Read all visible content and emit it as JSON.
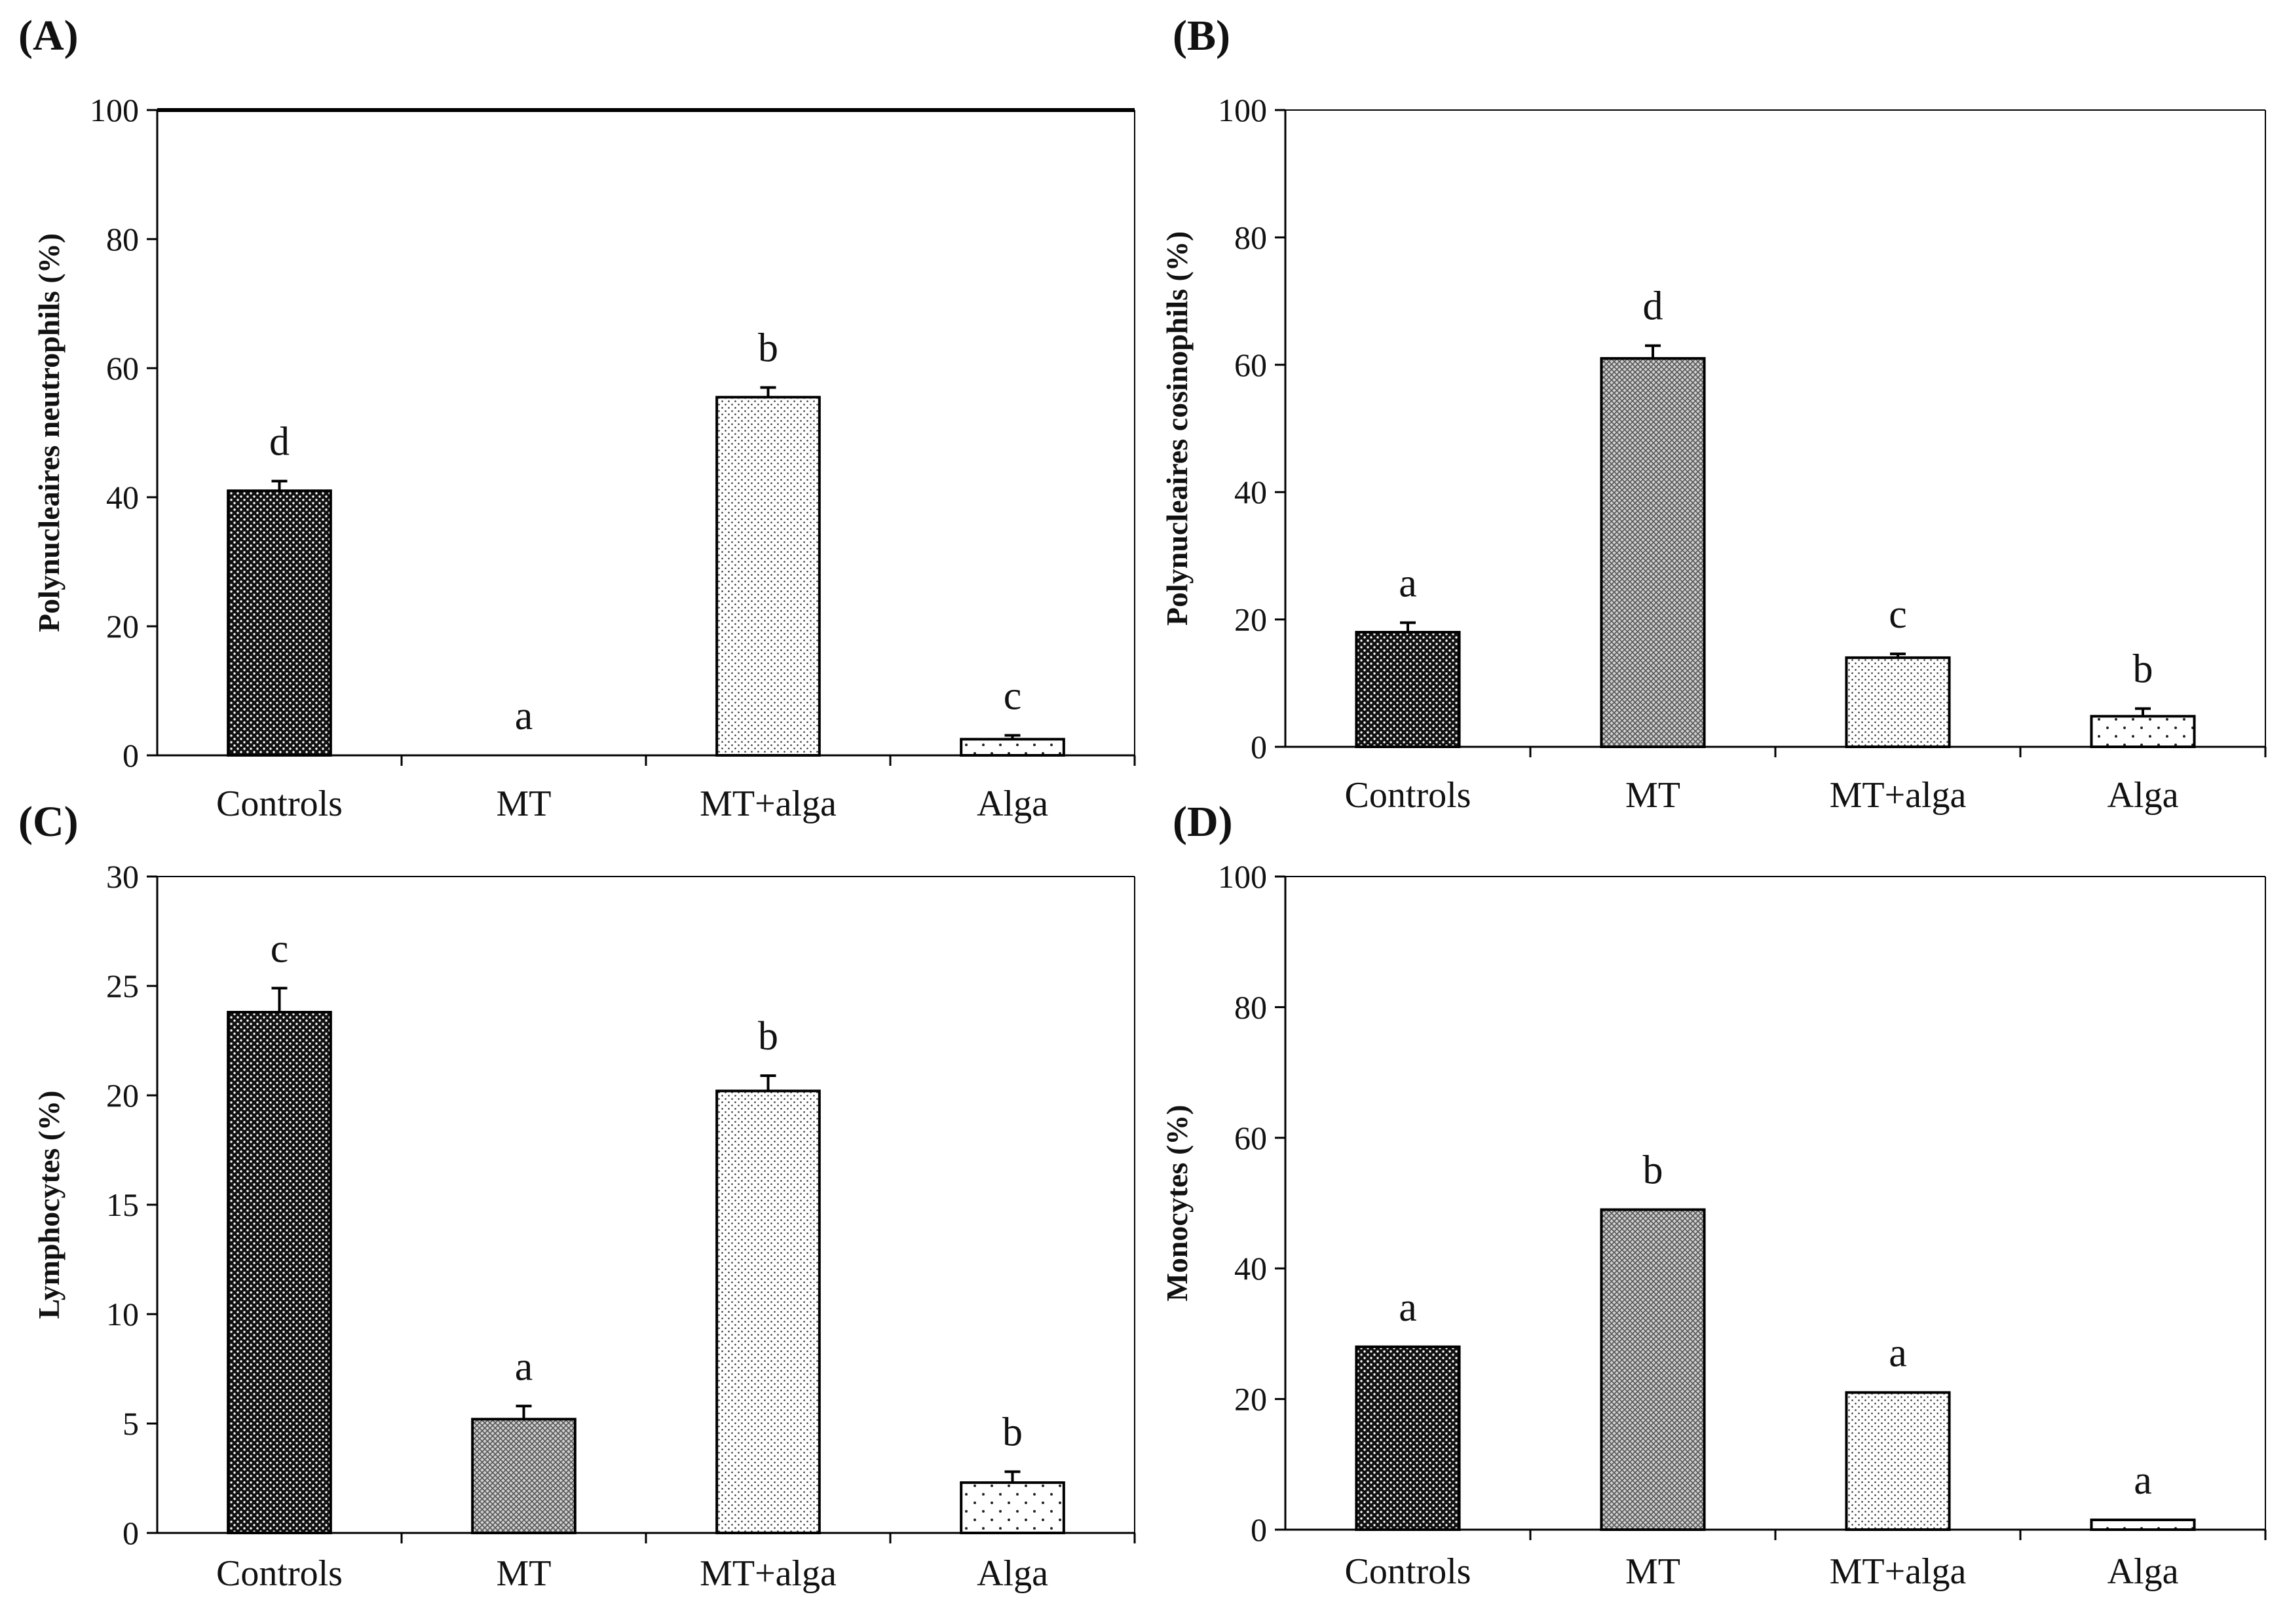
{
  "colors": {
    "axis": "#000000",
    "controls_fill": "#111111",
    "mt_fill": "#9a9a9a",
    "mtalga_fill": "#d8d8d8",
    "alga_fill": "#ffffff"
  },
  "chart_data": [
    {
      "type": "bar",
      "panel": "(A)",
      "ylabel": "Polynucleaires neutrophils  (%)",
      "categories": [
        "Controls",
        "MT",
        "MT+alga",
        "Alga"
      ],
      "values": [
        41,
        0,
        55.5,
        2.5
      ],
      "errors": [
        1.5,
        0,
        1.5,
        0.6
      ],
      "letters": [
        "d",
        "a",
        "b",
        "c"
      ],
      "ylim": [
        0,
        100
      ],
      "yticks": [
        "0",
        "20",
        "40",
        "60",
        "80",
        "100"
      ],
      "patterns": [
        "controls",
        "mt",
        "mtalga",
        "alga"
      ]
    },
    {
      "type": "bar",
      "panel": "(B)",
      "ylabel": "Polynucleaires cosinophils  (%)",
      "categories": [
        "Controls",
        "MT",
        "MT+alga",
        "Alga"
      ],
      "values": [
        18,
        61,
        14,
        4.8
      ],
      "errors": [
        1.5,
        2,
        0.6,
        1.2
      ],
      "letters": [
        "a",
        "d",
        "c",
        "b"
      ],
      "ylim": [
        0,
        100
      ],
      "yticks": [
        "0",
        "20",
        "40",
        "60",
        "80",
        "100"
      ],
      "patterns": [
        "controls",
        "mt",
        "mtalga",
        "alga"
      ]
    },
    {
      "type": "bar",
      "panel": "(C)",
      "ylabel": "Lymphocytes  (%)",
      "categories": [
        "Controls",
        "MT",
        "MT+alga",
        "Alga"
      ],
      "values": [
        23.8,
        5.2,
        20.2,
        2.3
      ],
      "errors": [
        1.1,
        0.6,
        0.7,
        0.5
      ],
      "letters": [
        "c",
        "a",
        "b",
        "b"
      ],
      "ylim": [
        0,
        30
      ],
      "yticks": [
        "0",
        "5",
        "10",
        "15",
        "20",
        "25",
        "30"
      ],
      "patterns": [
        "controls",
        "mt",
        "mtalga",
        "alga"
      ]
    },
    {
      "type": "bar",
      "panel": "(D)",
      "ylabel": "Monocytes  (%)",
      "categories": [
        "Controls",
        "MT",
        "MT+alga",
        "Alga"
      ],
      "values": [
        28,
        49,
        21,
        1.5
      ],
      "errors": [
        0,
        0,
        0,
        0
      ],
      "letters": [
        "a",
        "b",
        "a",
        "a"
      ],
      "ylim": [
        0,
        100
      ],
      "yticks": [
        "0",
        "20",
        "40",
        "60",
        "80",
        "100"
      ],
      "patterns": [
        "controls",
        "mt",
        "mtalga",
        "alga"
      ]
    }
  ]
}
